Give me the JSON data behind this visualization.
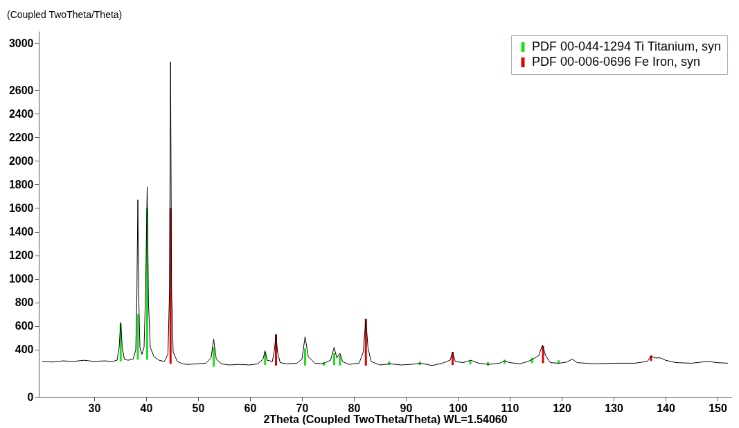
{
  "chart_data": {
    "type": "line",
    "title": "(Coupled TwoTheta/Theta)",
    "xlabel": "2Theta (Coupled TwoTheta/Theta) WL=1.54060",
    "xlim": [
      20,
      152
    ],
    "xticks": [
      30,
      40,
      50,
      60,
      70,
      80,
      90,
      100,
      110,
      120,
      130,
      140,
      150
    ],
    "ylim": [
      0,
      3100
    ],
    "yticks": [
      0,
      400,
      600,
      800,
      1000,
      1200,
      1400,
      1600,
      1800,
      2000,
      2200,
      2400,
      2600,
      3000
    ],
    "grid": false,
    "legend": "top right",
    "series": [
      {
        "color": "#000000",
        "x": [
          20,
          22,
          24,
          26,
          28,
          30,
          32,
          33.5,
          34.4,
          34.8,
          35.1,
          35.4,
          35.8,
          36.5,
          37.5,
          38.0,
          38.2,
          38.4,
          38.6,
          38.8,
          39.2,
          39.6,
          39.9,
          40.2,
          40.45,
          40.8,
          41.5,
          42.5,
          43.5,
          44.2,
          44.5,
          44.7,
          44.9,
          45.2,
          46,
          47,
          48,
          50,
          51.5,
          52.5,
          53.0,
          53.5,
          54.5,
          56,
          58,
          60,
          61.5,
          62.5,
          62.9,
          63.3,
          64.3,
          64.7,
          65.0,
          65.3,
          65.8,
          67,
          69,
          70.0,
          70.6,
          71.2,
          72.5,
          74,
          75.5,
          76.2,
          76.7,
          77.3,
          77.8,
          79,
          81,
          81.8,
          82.3,
          82.7,
          83.3,
          85,
          87,
          89,
          91,
          93,
          95,
          97,
          98.5,
          99.0,
          99.5,
          101,
          102.5,
          104,
          106,
          108,
          109,
          110,
          112,
          113.5,
          114.5,
          115.6,
          116.3,
          116.9,
          117.8,
          119.5,
          121,
          122,
          123,
          126,
          130,
          134,
          136.5,
          137.2,
          138,
          139,
          140,
          142,
          145,
          148,
          150,
          152
        ],
        "values": [
          300,
          295,
          305,
          300,
          310,
          300,
          305,
          300,
          310,
          420,
          630,
          420,
          320,
          310,
          320,
          400,
          800,
          1670,
          800,
          420,
          360,
          420,
          900,
          1780,
          800,
          420,
          340,
          310,
          300,
          360,
          900,
          2840,
          900,
          380,
          300,
          280,
          275,
          280,
          285,
          330,
          490,
          320,
          280,
          270,
          275,
          270,
          280,
          320,
          390,
          310,
          300,
          400,
          530,
          380,
          290,
          280,
          285,
          320,
          510,
          340,
          285,
          280,
          310,
          420,
          330,
          370,
          300,
          275,
          285,
          380,
          660,
          420,
          300,
          270,
          280,
          270,
          275,
          285,
          265,
          285,
          310,
          380,
          300,
          290,
          310,
          285,
          275,
          285,
          305,
          290,
          280,
          300,
          320,
          350,
          440,
          350,
          290,
          285,
          295,
          320,
          290,
          280,
          285,
          285,
          300,
          345,
          330,
          330,
          310,
          290,
          285,
          300,
          290,
          285
        ]
      },
      {
        "type": "bar",
        "name": "PDF 00-044-1294 Ti Titanium, syn",
        "color": "#1ee01e",
        "x": [
          35.1,
          38.4,
          40.2,
          53.0,
          62.9,
          70.6,
          74.2,
          76.2,
          77.3,
          86.8,
          92.7,
          102.4,
          105.8,
          109.0,
          114.3,
          119.4
        ],
        "base": [
          300,
          315,
          315,
          255,
          270,
          265,
          265,
          270,
          265,
          270,
          270,
          275,
          265,
          280,
          285,
          280
        ],
        "values": [
          320,
          385,
          1285,
          165,
          110,
          145,
          30,
          100,
          85,
          30,
          30,
          30,
          30,
          35,
          45,
          30
        ]
      },
      {
        "type": "bar",
        "name": "PDF 00-006-0696 Fe Iron, syn",
        "color": "#e00000",
        "x": [
          44.7,
          65.0,
          82.3,
          99.0,
          116.4,
          137.2
        ],
        "base": [
          280,
          265,
          265,
          270,
          285,
          305
        ],
        "values": [
          1320,
          265,
          395,
          110,
          145,
          45
        ]
      }
    ]
  }
}
